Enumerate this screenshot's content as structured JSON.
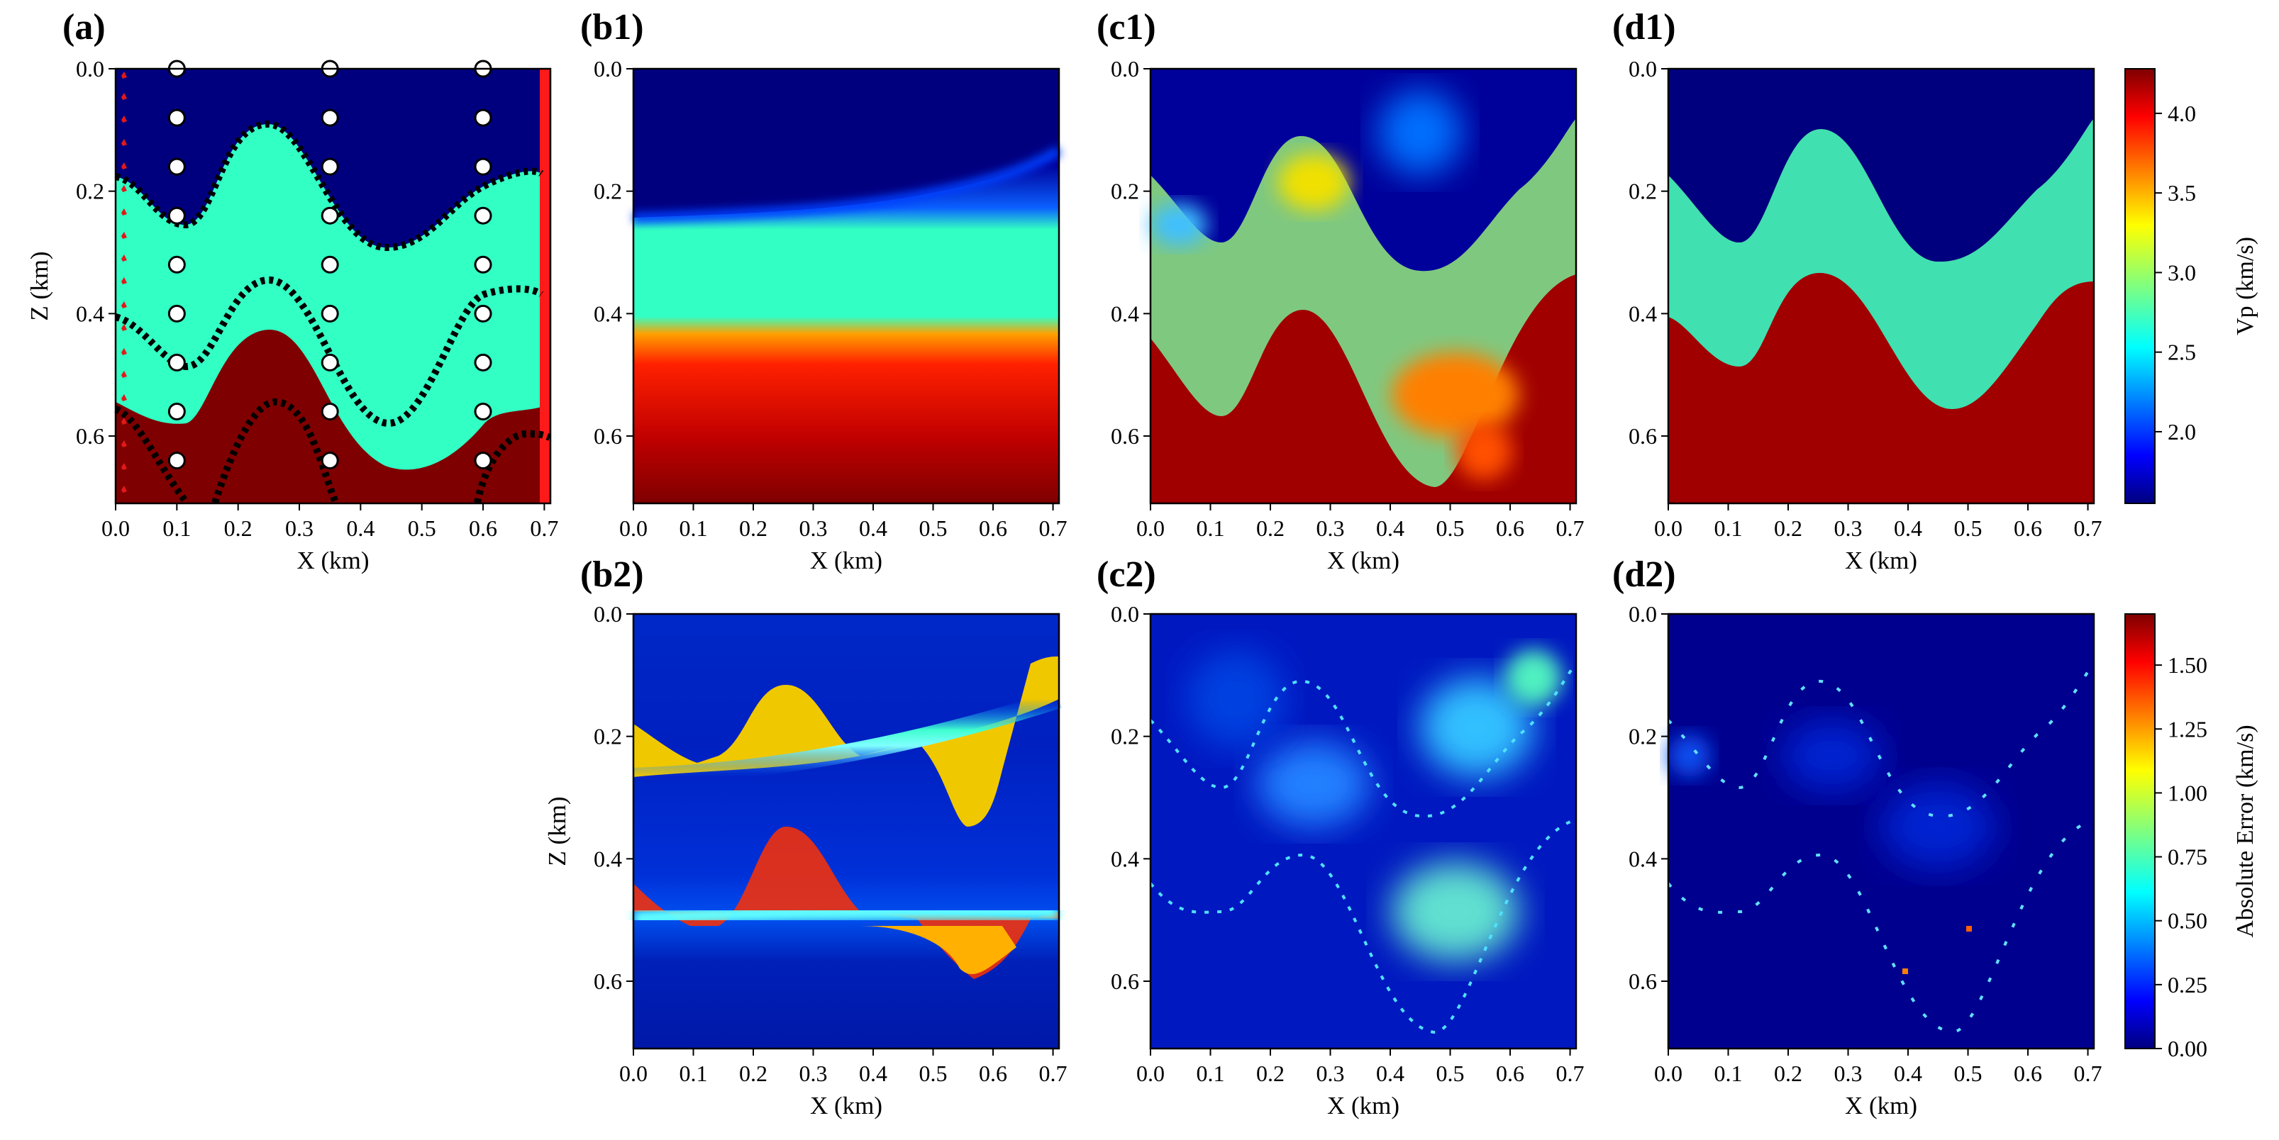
{
  "colors": {
    "background": "#ffffff",
    "sediment_top": "#00007f",
    "middle_layer": "#32ffc4",
    "bottom_layer": "#7f0000",
    "receiver_line": "#ff1a1a",
    "sources": "#e01a1a",
    "wells": "#ffffff",
    "interface_points": "#000000"
  },
  "labels": {
    "x_axis": "X (km)",
    "z_axis": "Z (km)",
    "vp_colorbar": "Vp (km/s)",
    "err_colorbar": "Absolute Error (km/s)"
  },
  "chart_data": [
    {
      "panel": "(a)",
      "type": "heatmap",
      "ylabel": "Z (km)",
      "xlabel": "X (km)",
      "xlim": [
        0,
        0.71
      ],
      "ylim": [
        0.71,
        0
      ],
      "xticks": [
        "0.0",
        "0.1",
        "0.2",
        "0.3",
        "0.4",
        "0.5",
        "0.6",
        "0.7"
      ],
      "yticks": [
        "0.0",
        "0.2",
        "0.4",
        "0.6"
      ],
      "layers": [
        "top sediment (~1.6 km/s)",
        "middle layer (~2.6 km/s)",
        "bottom layer (~4.2 km/s)"
      ],
      "well_x": [
        0.1,
        0.35,
        0.6
      ],
      "well_z": [
        0.0,
        0.08,
        0.16,
        0.24,
        0.32,
        0.4,
        0.48,
        0.56,
        0.64
      ]
    },
    {
      "panel": "(b1)",
      "type": "heatmap",
      "xlabel": "X (km)",
      "description_of": "initial smooth model"
    },
    {
      "panel": "(c1)",
      "type": "heatmap",
      "xlabel": "X (km)"
    },
    {
      "panel": "(d1)",
      "type": "heatmap",
      "xlabel": "X (km)"
    },
    {
      "panel": "(b2)",
      "type": "heatmap",
      "ylabel": "Z (km)",
      "xlabel": "X (km)"
    },
    {
      "panel": "(c2)",
      "type": "heatmap",
      "xlabel": "X (km)"
    },
    {
      "panel": "(d2)",
      "type": "heatmap",
      "xlabel": "X (km)"
    },
    {
      "panel": "colorbar-vp",
      "type": "colorbar",
      "label": "Vp (km/s)",
      "range": [
        1.55,
        4.28
      ],
      "ticks": [
        "2.0",
        "2.5",
        "3.0",
        "3.5",
        "4.0"
      ]
    },
    {
      "panel": "colorbar-err",
      "type": "colorbar",
      "label": "Absolute Error (km/s)",
      "range": [
        0,
        1.7
      ],
      "ticks": [
        "0.00",
        "0.25",
        "0.50",
        "0.75",
        "1.00",
        "1.25",
        "1.50"
      ]
    }
  ]
}
